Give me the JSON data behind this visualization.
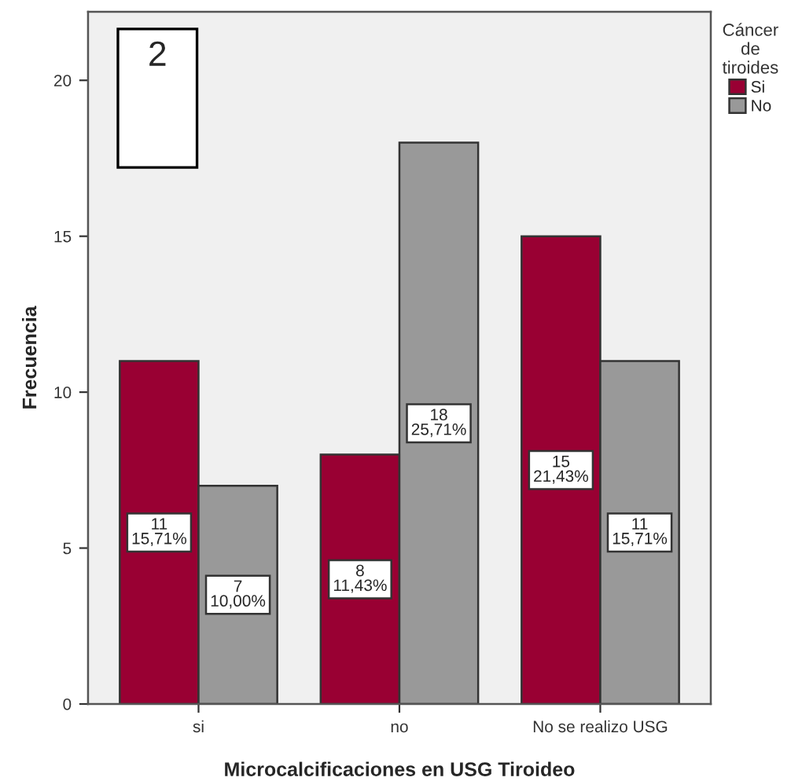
{
  "chart_data": {
    "type": "bar",
    "categories": [
      "si",
      "no",
      "No se realizo USG"
    ],
    "series": [
      {
        "name": "Si",
        "color": "#990033",
        "values": [
          11,
          8,
          15
        ],
        "value_labels": [
          "11\n15,71%",
          "8\n11,43%",
          "15\n21,43%"
        ]
      },
      {
        "name": "No",
        "color": "#999999",
        "values": [
          7,
          18,
          11
        ],
        "value_labels": [
          "7\n10,00%",
          "18\n25,71%",
          "11\n15,71%"
        ]
      }
    ],
    "xlabel": "Microcalcificaciones en USG Tiroideo",
    "ylabel": "Frecuencia",
    "legend_title": "Cáncer de tiroides",
    "annotations": [
      "2"
    ],
    "ylim": [
      0,
      22.2
    ],
    "yticks": [
      0,
      5,
      10,
      15,
      20
    ],
    "legend": "top right"
  }
}
